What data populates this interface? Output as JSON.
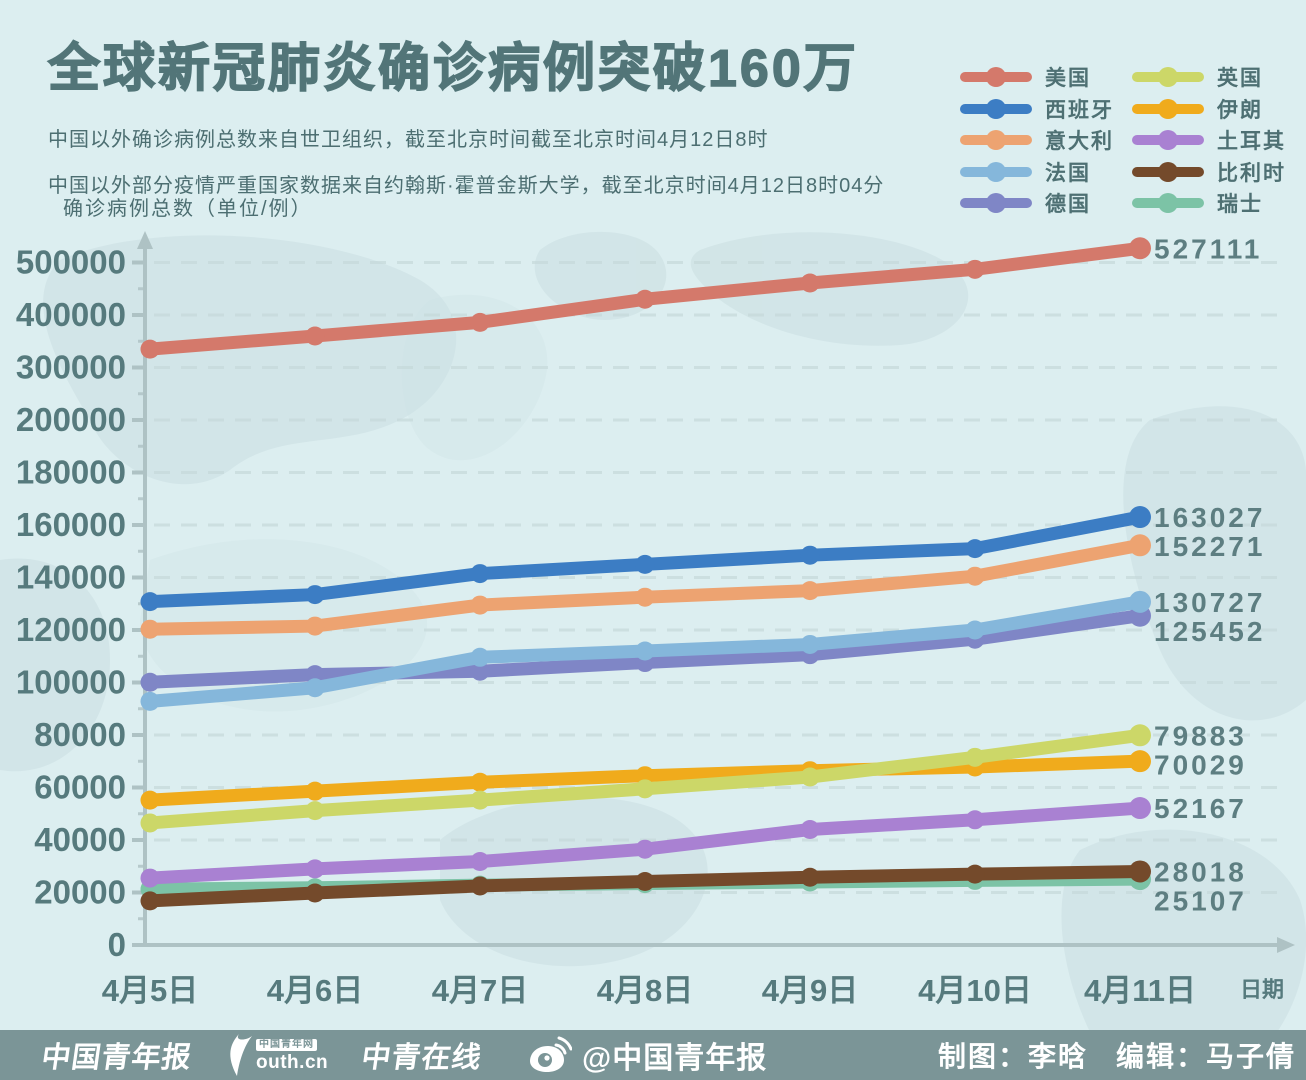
{
  "header": {
    "title": "全球新冠肺炎确诊病例突破160万",
    "subtitle1": "中国以外确诊病例总数来自世卫组织，截至北京时间截至北京时间4月12日8时",
    "subtitle2": "中国以外部分疫情严重国家数据来自约翰斯·霍普金斯大学，截至北京时间4月12日8时04分"
  },
  "chart_data": {
    "type": "line",
    "title": "确诊病例总数（单位/例）",
    "xlabel": "日期",
    "categories": [
      "4月5日",
      "4月6日",
      "4月7日",
      "4月8日",
      "4月9日",
      "4月10日",
      "4月11日"
    ],
    "y_axis": {
      "ticks": [
        0,
        20000,
        40000,
        60000,
        80000,
        100000,
        120000,
        140000,
        160000,
        180000,
        200000,
        300000,
        400000,
        500000
      ],
      "scale_note": "piecewise linear: equal pixel step per 20000 up to 200000, then per 100000 above"
    },
    "grid": "dashed-horizontal",
    "legend_position": "top-right",
    "series": [
      {
        "id": "usa",
        "name": "美国",
        "color": "#d4796b",
        "values": [
          335000,
          360000,
          386000,
          430000,
          461000,
          487000,
          527111
        ],
        "end_label": "527111"
      },
      {
        "id": "spain",
        "name": "西班牙",
        "color": "#3c7dc4",
        "values": [
          130800,
          133500,
          141500,
          145000,
          148500,
          151000,
          163027
        ],
        "end_label": "163027"
      },
      {
        "id": "italy",
        "name": "意大利",
        "color": "#eda371",
        "values": [
          120300,
          121500,
          129500,
          132500,
          135000,
          140500,
          152271
        ],
        "end_label": "152271"
      },
      {
        "id": "france",
        "name": "法国",
        "color": "#85b7db",
        "values": [
          92800,
          98000,
          109600,
          112000,
          114500,
          120000,
          130727
        ],
        "end_label": "130727"
      },
      {
        "id": "germany",
        "name": "德国",
        "color": "#7f86c6",
        "values": [
          100100,
          103000,
          104300,
          107600,
          110600,
          116500,
          125452
        ],
        "end_label": "125452"
      },
      {
        "id": "uk",
        "name": "英国",
        "color": "#ccd768",
        "values": [
          46500,
          51200,
          55200,
          59500,
          64000,
          71500,
          79883
        ],
        "end_label": "79883"
      },
      {
        "id": "iran",
        "name": "伊朗",
        "color": "#f0ab1c",
        "values": [
          55200,
          58600,
          62000,
          64500,
          66400,
          67800,
          70029
        ],
        "end_label": "70029"
      },
      {
        "id": "turkey",
        "name": "土耳其",
        "color": "#a981d2",
        "values": [
          25500,
          29000,
          31800,
          36500,
          44000,
          47700,
          52167
        ],
        "end_label": "52167"
      },
      {
        "id": "belgium",
        "name": "比利时",
        "color": "#744a2b",
        "values": [
          16800,
          19800,
          22500,
          24200,
          25800,
          27000,
          28018
        ],
        "end_label": "28018"
      },
      {
        "id": "switzerland",
        "name": "瑞士",
        "color": "#7cc3a6",
        "values": [
          21300,
          21800,
          22800,
          23400,
          24000,
          24600,
          25107
        ],
        "end_label": "25107"
      }
    ]
  },
  "footer": {
    "logo_cyd": "中国青年报",
    "logo_youth_badge": "中国青年网",
    "logo_youth_text": "outh.cn",
    "logo_zqol": "中青在线",
    "weibo_handle": "@中国青年报",
    "credit_map": "制图：李晗",
    "credit_edit": "编辑：马子倩"
  },
  "colors": {
    "background": "#dceef0",
    "land": "#cbdfe1",
    "text_primary": "#567a7d",
    "text_secondary": "#4c6e71",
    "end_label_color": "#5d7e81",
    "axis": "#aec2c4",
    "gridline": "#c5d8d9",
    "footer_bg": "#7b9597",
    "footer_text": "#ffffff"
  }
}
